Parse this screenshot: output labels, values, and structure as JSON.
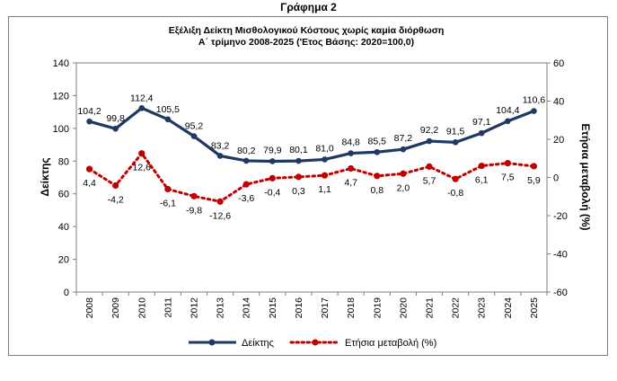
{
  "page_heading": "Γράφημα 2",
  "chart_data": {
    "type": "line",
    "title_line1": "Εξέλιξη Δείκτη Μισθολογικού  Κόστους χωρίς καμία διόρθωση",
    "title_line2": "Α΄ τρίμηνο 2008-2025 ('Ετος Βάσης: 2020=100,0)",
    "ylabel": "Δείκτης",
    "y2label": "Ετήσια μεταβολή (%)",
    "ylim": [
      0,
      140
    ],
    "yticks": [
      "0",
      "20",
      "40",
      "60",
      "80",
      "100",
      "120",
      "140"
    ],
    "y2lim": [
      -60,
      60
    ],
    "y2ticks": [
      "-60",
      "-40",
      "-20",
      "0",
      "20",
      "40",
      "60"
    ],
    "categories": [
      "2008",
      "2009",
      "2010",
      "2011",
      "2012",
      "2013",
      "2014",
      "2015",
      "2016",
      "2017",
      "2018",
      "2019",
      "2020",
      "2021",
      "2022",
      "2023",
      "2024",
      "2025"
    ],
    "grid": false,
    "legend_position": "bottom",
    "series": [
      {
        "name": "Δείκτης",
        "axis": "left",
        "color": "#1f3864",
        "style": "solid",
        "values": [
          104.2,
          99.8,
          112.4,
          105.5,
          95.2,
          83.2,
          80.2,
          79.9,
          80.1,
          81.0,
          84.8,
          85.5,
          87.2,
          92.2,
          91.5,
          97.1,
          104.4,
          110.6
        ],
        "labels": [
          "104,2",
          "99,8",
          "112,4",
          "105,5",
          "95,2",
          "83,2",
          "80,2",
          "79,9",
          "80,1",
          "81,0",
          "84,8",
          "85,5",
          "87,2",
          "92,2",
          "91,5",
          "97,1",
          "104,4",
          "110,6"
        ]
      },
      {
        "name": "Ετήσια μεταβολή (%)",
        "axis": "right",
        "color": "#c00000",
        "style": "dotted",
        "values": [
          4.4,
          -4.2,
          12.6,
          -6.1,
          -9.8,
          -12.6,
          -3.6,
          -0.4,
          0.3,
          1.1,
          4.7,
          0.8,
          2.0,
          5.7,
          -0.8,
          6.1,
          7.5,
          5.9
        ],
        "labels": [
          "4,4",
          "-4,2",
          "12,6",
          "-6,1",
          "-9,8",
          "-12,6",
          "-3,6",
          "-0,4",
          "0,3",
          "1,1",
          "4,7",
          "0,8",
          "2,0",
          "5,7",
          "-0,8",
          "6,1",
          "7,5",
          "5,9"
        ]
      }
    ]
  }
}
